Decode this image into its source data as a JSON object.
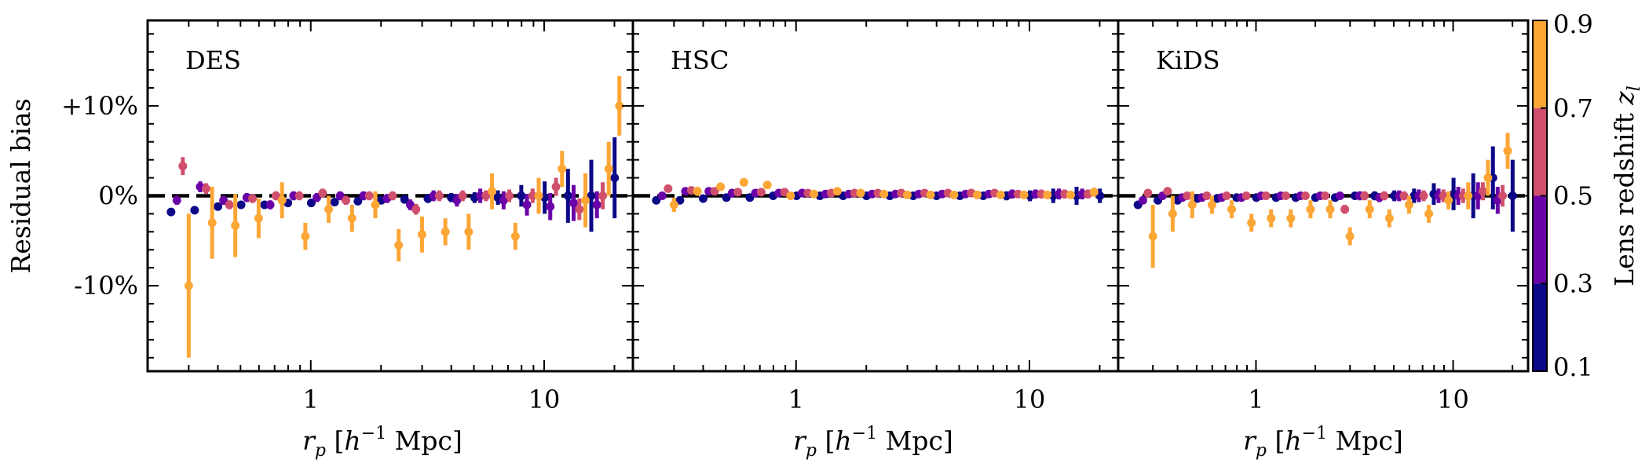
{
  "figure": {
    "ylabel": "Residual bias",
    "xlabel": "r_p [h^-1 Mpc]",
    "colorbar_label": "Lens redshift z_l"
  },
  "chart_data": {
    "type": "scatter",
    "xscale": "log",
    "xlim": [
      0.2,
      24
    ],
    "ylim": [
      -0.195,
      0.195
    ],
    "x_ticks": [
      1,
      10
    ],
    "x_tick_labels": [
      "1",
      "10"
    ],
    "y_ticks": [
      0.1,
      0.0,
      -0.1
    ],
    "y_tick_labels": [
      "+10%",
      "0%",
      "-10%"
    ],
    "reference_line": 0,
    "colorbar": {
      "label": "Lens redshift z_l",
      "ticks": [
        0.1,
        0.3,
        0.5,
        0.7,
        0.9
      ],
      "tick_labels": [
        "0.1",
        "0.3",
        "0.5",
        "0.7",
        "0.9"
      ],
      "bins": [
        {
          "range": [
            0.1,
            0.3
          ],
          "color": "#0c0887"
        },
        {
          "range": [
            0.3,
            0.5
          ],
          "color": "#6a00a8"
        },
        {
          "range": [
            0.5,
            0.7
          ],
          "color": "#cf4f6d"
        },
        {
          "range": [
            0.7,
            0.9
          ],
          "color": "#fca636"
        }
      ]
    },
    "panels": [
      {
        "title": "DES",
        "series": [
          {
            "z_bin": [
              0.1,
              0.3
            ],
            "color": "#0c0887",
            "x": [
              0.252,
              0.318,
              0.4,
              0.503,
              0.634,
              0.798,
              1.005,
              1.265,
              1.592,
              2.004,
              2.523,
              3.177,
              3.999,
              5.035,
              6.339,
              7.98,
              10.05,
              12.65,
              15.92,
              20.04
            ],
            "y": [
              -0.018,
              -0.016,
              -0.012,
              -0.01,
              -0.01,
              -0.008,
              -0.008,
              -0.007,
              -0.006,
              -0.005,
              -0.004,
              -0.003,
              -0.002,
              -0.002,
              -0.002,
              0.0,
              -0.002,
              0.0,
              0.0,
              0.02
            ],
            "err": [
              0.004,
              0.004,
              0.004,
              0.004,
              0.004,
              0.004,
              0.004,
              0.004,
              0.004,
              0.004,
              0.004,
              0.005,
              0.005,
              0.006,
              0.008,
              0.012,
              0.018,
              0.03,
              0.04,
              0.045
            ]
          },
          {
            "z_bin": [
              0.3,
              0.5
            ],
            "color": "#6a00a8",
            "x": [
              0.267,
              0.336,
              0.423,
              0.532,
              0.67,
              0.844,
              1.062,
              1.337,
              1.683,
              2.119,
              2.668,
              3.358,
              4.228,
              5.323,
              6.702,
              8.437,
              10.62,
              13.37,
              16.83
            ],
            "y": [
              -0.005,
              0.01,
              -0.005,
              -0.002,
              -0.01,
              0.0,
              -0.002,
              0.0,
              0.0,
              -0.003,
              -0.01,
              0.0,
              -0.005,
              0.0,
              -0.005,
              -0.01,
              -0.012,
              -0.008,
              -0.01
            ],
            "err": [
              0.005,
              0.006,
              0.005,
              0.005,
              0.005,
              0.005,
              0.005,
              0.005,
              0.005,
              0.005,
              0.006,
              0.006,
              0.007,
              0.008,
              0.01,
              0.012,
              0.015,
              0.02,
              0.015
            ]
          },
          {
            "z_bin": [
              0.5,
              0.7
            ],
            "color": "#cf4f6d",
            "x": [
              0.283,
              0.356,
              0.448,
              0.563,
              0.709,
              0.893,
              1.124,
              1.415,
              1.781,
              2.242,
              2.823,
              3.554,
              4.474,
              5.632,
              7.091,
              8.927,
              11.24,
              14.15,
              17.81
            ],
            "y": [
              0.033,
              0.008,
              -0.01,
              -0.003,
              0.0,
              0.0,
              0.003,
              -0.005,
              0.0,
              0.0,
              -0.015,
              0.0,
              0.0,
              0.0,
              0.0,
              0.0,
              0.01,
              -0.015,
              0.0
            ],
            "err": [
              0.01,
              0.006,
              0.005,
              0.005,
              0.005,
              0.005,
              0.005,
              0.005,
              0.005,
              0.005,
              0.006,
              0.006,
              0.006,
              0.006,
              0.007,
              0.008,
              0.01,
              0.012,
              0.015
            ]
          },
          {
            "z_bin": [
              0.7,
              0.9
            ],
            "color": "#fca636",
            "x": [
              0.3,
              0.378,
              0.475,
              0.598,
              0.753,
              0.948,
              1.193,
              1.502,
              1.891,
              2.38,
              2.997,
              3.772,
              4.749,
              5.979,
              7.527,
              9.476,
              11.93,
              15.02,
              18.91
            ],
            "y": [
              -0.1,
              -0.03,
              -0.033,
              -0.025,
              -0.005,
              -0.045,
              -0.015,
              -0.025,
              -0.01,
              -0.055,
              -0.043,
              -0.04,
              -0.04,
              0.005,
              -0.045,
              0.0,
              0.03,
              -0.005,
              0.03
            ],
            "err": [
              0.08,
              0.04,
              0.035,
              0.022,
              0.02,
              0.015,
              0.015,
              0.015,
              0.015,
              0.018,
              0.02,
              0.015,
              0.02,
              0.02,
              0.015,
              0.02,
              0.02,
              0.03,
              0.03
            ]
          }
        ],
        "extra_point": {
          "x": 21.0,
          "y": 0.1,
          "err": 0.033,
          "color": "#fca636"
        }
      },
      {
        "title": "HSC",
        "series": [
          {
            "z_bin": [
              0.1,
              0.3
            ],
            "color": "#0c0887",
            "x": [
              0.252,
              0.318,
              0.4,
              0.503,
              0.634,
              0.798,
              1.005,
              1.265,
              1.592,
              2.004,
              2.523,
              3.177,
              3.999,
              5.035,
              6.339,
              7.98,
              10.05,
              12.65,
              15.92,
              20.04
            ],
            "y": [
              -0.005,
              -0.005,
              -0.003,
              -0.002,
              -0.002,
              0.0,
              0.0,
              0.0,
              0.0,
              0.0,
              0.0,
              0.0,
              0.0,
              0.0,
              0.0,
              0.0,
              0.0,
              0.0,
              0.0,
              0.0
            ],
            "err": [
              0.004,
              0.004,
              0.004,
              0.004,
              0.004,
              0.004,
              0.004,
              0.004,
              0.004,
              0.004,
              0.004,
              0.004,
              0.004,
              0.004,
              0.004,
              0.005,
              0.006,
              0.008,
              0.01,
              0.008
            ]
          },
          {
            "z_bin": [
              0.3,
              0.5
            ],
            "color": "#6a00a8",
            "x": [
              0.267,
              0.336,
              0.423,
              0.532,
              0.67,
              0.844,
              1.062,
              1.337,
              1.683,
              2.119,
              2.668,
              3.358,
              4.228,
              5.323,
              6.702,
              8.437,
              10.62,
              13.37,
              16.83
            ],
            "y": [
              0.0,
              0.005,
              0.005,
              0.003,
              0.003,
              0.003,
              0.003,
              0.002,
              0.002,
              0.002,
              0.002,
              0.002,
              0.002,
              0.002,
              0.002,
              0.002,
              0.002,
              0.002,
              0.002
            ],
            "err": [
              0.004,
              0.004,
              0.004,
              0.004,
              0.004,
              0.004,
              0.004,
              0.004,
              0.004,
              0.004,
              0.004,
              0.004,
              0.004,
              0.004,
              0.004,
              0.005,
              0.005,
              0.006,
              0.006
            ]
          },
          {
            "z_bin": [
              0.5,
              0.7
            ],
            "color": "#cf4f6d",
            "x": [
              0.283,
              0.356,
              0.448,
              0.563,
              0.709,
              0.893,
              1.124,
              1.415,
              1.781,
              2.242,
              2.823,
              3.554,
              4.474,
              5.632,
              7.091,
              8.927,
              11.24,
              14.15,
              17.81
            ],
            "y": [
              0.008,
              0.006,
              0.005,
              0.004,
              0.004,
              0.004,
              0.003,
              0.003,
              0.003,
              0.003,
              0.003,
              0.003,
              0.003,
              0.003,
              0.003,
              0.002,
              0.002,
              0.002,
              0.002
            ],
            "err": [
              0.004,
              0.004,
              0.004,
              0.004,
              0.004,
              0.004,
              0.004,
              0.004,
              0.004,
              0.004,
              0.004,
              0.004,
              0.004,
              0.004,
              0.004,
              0.004,
              0.005,
              0.005,
              0.005
            ]
          },
          {
            "z_bin": [
              0.7,
              0.9
            ],
            "color": "#fca636",
            "x": [
              0.3,
              0.378,
              0.475,
              0.598,
              0.753,
              0.948,
              1.193,
              1.502,
              1.891,
              2.38,
              2.997,
              3.772,
              4.749,
              5.979,
              7.527,
              9.476,
              11.93,
              15.02,
              18.91
            ],
            "y": [
              -0.01,
              0.005,
              0.01,
              0.015,
              0.012,
              0.0,
              0.002,
              0.005,
              0.003,
              0.002,
              0.001,
              0.001,
              0.001,
              0.001,
              0.001,
              0.001,
              0.001,
              0.001,
              0.004
            ],
            "err": [
              0.008,
              0.005,
              0.004,
              0.004,
              0.004,
              0.004,
              0.004,
              0.004,
              0.004,
              0.004,
              0.004,
              0.004,
              0.004,
              0.004,
              0.004,
              0.004,
              0.004,
              0.004,
              0.005
            ]
          }
        ]
      },
      {
        "title": "KiDS",
        "series": [
          {
            "z_bin": [
              0.1,
              0.3
            ],
            "color": "#0c0887",
            "x": [
              0.252,
              0.318,
              0.4,
              0.503,
              0.634,
              0.798,
              1.005,
              1.265,
              1.592,
              2.004,
              2.523,
              3.177,
              3.999,
              5.035,
              6.339,
              7.98,
              10.05,
              12.65,
              15.92,
              20.04
            ],
            "y": [
              -0.01,
              -0.005,
              -0.005,
              -0.003,
              -0.003,
              -0.002,
              -0.002,
              -0.002,
              -0.002,
              -0.002,
              -0.002,
              0.0,
              0.0,
              0.0,
              0.0,
              0.002,
              0.002,
              0.0,
              0.02,
              0.0
            ],
            "err": [
              0.004,
              0.004,
              0.004,
              0.004,
              0.004,
              0.004,
              0.004,
              0.004,
              0.004,
              0.004,
              0.004,
              0.004,
              0.005,
              0.006,
              0.008,
              0.012,
              0.018,
              0.025,
              0.035,
              0.04
            ]
          },
          {
            "z_bin": [
              0.3,
              0.5
            ],
            "color": "#6a00a8",
            "x": [
              0.267,
              0.336,
              0.423,
              0.532,
              0.67,
              0.844,
              1.062,
              1.337,
              1.683,
              2.119,
              2.668,
              3.358,
              4.228,
              5.323,
              6.702,
              8.437,
              10.62,
              13.37,
              16.83
            ],
            "y": [
              -0.005,
              0.0,
              -0.002,
              -0.002,
              -0.002,
              -0.002,
              0.0,
              0.0,
              0.0,
              0.0,
              0.0,
              0.0,
              -0.002,
              0.0,
              0.0,
              0.0,
              0.0,
              0.0,
              -0.005
            ],
            "err": [
              0.004,
              0.004,
              0.004,
              0.004,
              0.004,
              0.004,
              0.004,
              0.004,
              0.004,
              0.004,
              0.004,
              0.005,
              0.005,
              0.006,
              0.007,
              0.008,
              0.01,
              0.015,
              0.015
            ]
          },
          {
            "z_bin": [
              0.5,
              0.7
            ],
            "color": "#cf4f6d",
            "x": [
              0.283,
              0.356,
              0.448,
              0.563,
              0.709,
              0.893,
              1.124,
              1.415,
              1.781,
              2.242,
              2.823,
              3.554,
              4.474,
              5.632,
              7.091,
              8.927,
              11.24,
              14.15,
              17.81
            ],
            "y": [
              0.003,
              0.005,
              0.0,
              0.0,
              0.0,
              0.0,
              0.0,
              0.0,
              0.0,
              0.0,
              -0.015,
              0.0,
              0.0,
              0.0,
              0.0,
              0.0,
              0.0,
              0.005,
              0.0
            ],
            "err": [
              0.004,
              0.004,
              0.004,
              0.004,
              0.004,
              0.004,
              0.004,
              0.004,
              0.004,
              0.004,
              0.005,
              0.005,
              0.005,
              0.005,
              0.006,
              0.007,
              0.008,
              0.01,
              0.012
            ]
          },
          {
            "z_bin": [
              0.7,
              0.9
            ],
            "color": "#fca636",
            "x": [
              0.3,
              0.378,
              0.475,
              0.598,
              0.753,
              0.948,
              1.193,
              1.502,
              1.891,
              2.38,
              2.997,
              3.772,
              4.749,
              5.979,
              7.527,
              9.476,
              11.93,
              15.02,
              18.91
            ],
            "y": [
              -0.045,
              -0.02,
              -0.01,
              -0.01,
              -0.015,
              -0.03,
              -0.025,
              -0.025,
              -0.015,
              -0.015,
              -0.045,
              -0.015,
              -0.025,
              -0.01,
              -0.02,
              -0.005,
              0.0,
              0.02,
              0.05
            ],
            "err": [
              0.035,
              0.02,
              0.015,
              0.01,
              0.01,
              0.01,
              0.01,
              0.01,
              0.01,
              0.01,
              0.01,
              0.01,
              0.01,
              0.01,
              0.01,
              0.01,
              0.015,
              0.02,
              0.02
            ]
          }
        ]
      }
    ]
  }
}
